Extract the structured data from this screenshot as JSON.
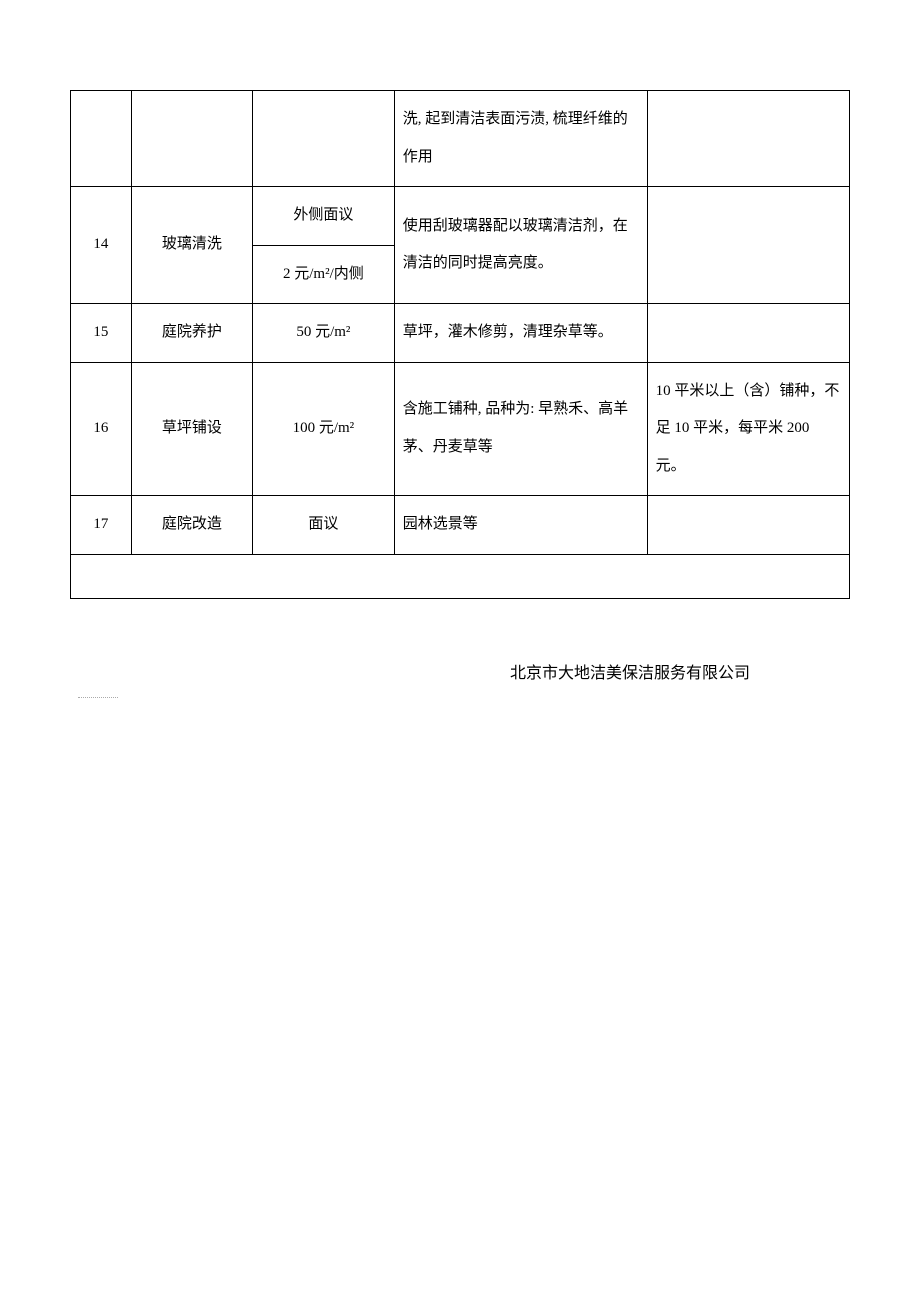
{
  "table": {
    "border_color": "#000000",
    "background_color": "#ffffff",
    "font_family": "SimSun",
    "font_size": 15,
    "line_height": 2.5,
    "columns": {
      "num_width": 60,
      "name_width": 120,
      "price_width": 140,
      "desc_width": 250,
      "note_width": 200
    },
    "rows": [
      {
        "num": "",
        "name": "",
        "price": "",
        "desc": "洗, 起到清洁表面污渍, 梳理纤维的作用",
        "note": ""
      },
      {
        "num": "14",
        "name": "玻璃清洗",
        "price_top": "外侧面议",
        "price_bottom": "2 元/m²/内侧",
        "desc": "使用刮玻璃器配以玻璃清洁剂，在清洁的同时提高亮度。",
        "note": ""
      },
      {
        "num": "15",
        "name": "庭院养护",
        "price": "50 元/m²",
        "desc": "草坪，灌木修剪，清理杂草等。",
        "note": ""
      },
      {
        "num": "16",
        "name": "草坪铺设",
        "price": "100 元/m²",
        "desc": "含施工铺种, 品种为: 早熟禾、高羊茅、丹麦草等",
        "note": "10 平米以上（含）铺种，不足 10 平米，每平米 200 元。"
      },
      {
        "num": "17",
        "name": "庭院改造",
        "price": "面议",
        "desc": "园林选景等",
        "note": ""
      }
    ]
  },
  "footer": {
    "company": "北京市大地洁美保洁服务有限公司"
  }
}
